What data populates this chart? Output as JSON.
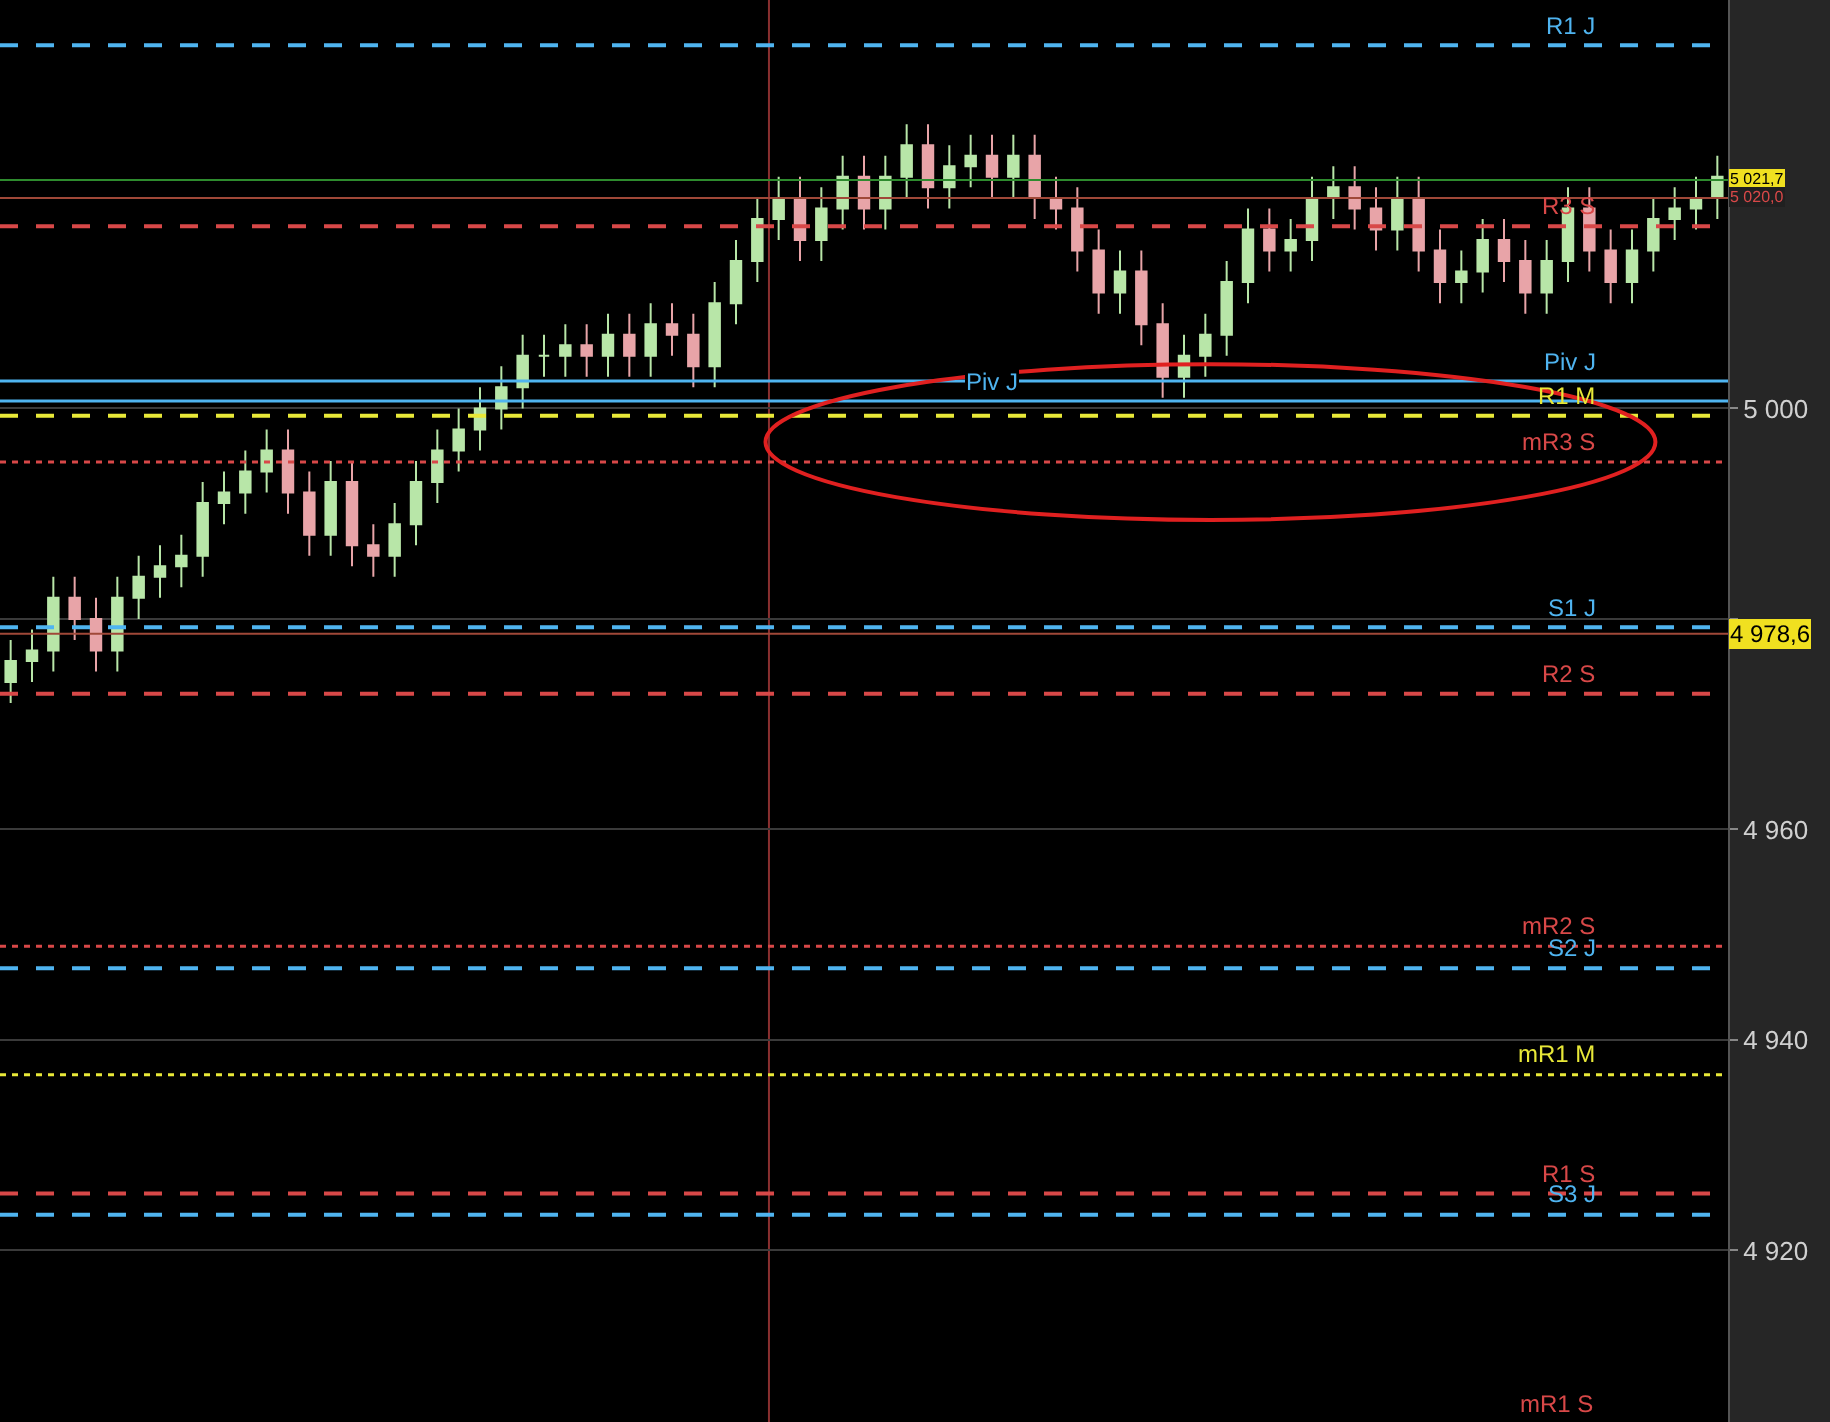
{
  "chart_data": {
    "type": "candlestick",
    "categories": [
      null,
      null,
      null,
      null,
      null,
      null,
      null,
      null,
      null,
      null,
      null,
      null,
      null,
      null,
      null,
      null,
      null,
      null,
      null,
      null,
      null,
      null,
      null,
      null,
      null,
      null,
      null,
      null,
      null,
      null,
      null,
      null,
      null,
      null,
      null,
      null,
      null,
      null,
      null,
      null,
      null,
      null,
      null,
      null,
      null,
      null,
      null,
      null,
      null,
      null,
      null,
      null,
      null,
      null,
      null,
      null,
      null,
      null,
      null,
      null,
      null,
      null,
      null,
      null,
      null,
      null,
      null,
      null,
      null,
      null,
      null,
      null,
      null,
      null,
      null,
      null,
      null,
      null,
      null,
      null,
      null
    ],
    "ohlc": [
      [
        4974,
        4978,
        4972,
        4976
      ],
      [
        4976,
        4979,
        4974,
        4977
      ],
      [
        4977,
        4984,
        4975,
        4982
      ],
      [
        4982,
        4984,
        4978,
        4980
      ],
      [
        4980,
        4982,
        4975,
        4977
      ],
      [
        4977,
        4984,
        4975,
        4982
      ],
      [
        4982,
        4986,
        4980,
        4984
      ],
      [
        4984,
        4987,
        4982,
        4985
      ],
      [
        4985,
        4988,
        4983,
        4986
      ],
      [
        4986,
        4993,
        4984,
        4991
      ],
      [
        4991,
        4994,
        4989,
        4992
      ],
      [
        4992,
        4996,
        4990,
        4994
      ],
      [
        4994,
        4998,
        4992,
        4996
      ],
      [
        4996,
        4998,
        4990,
        4992
      ],
      [
        4992,
        4994,
        4986,
        4988
      ],
      [
        4988,
        4995,
        4986,
        4993
      ],
      [
        4993,
        4995,
        4985,
        4987
      ],
      [
        4987,
        4989,
        4984,
        4986
      ],
      [
        4986,
        4991,
        4984,
        4989
      ],
      [
        4989,
        4995,
        4987,
        4993
      ],
      [
        4993,
        4998,
        4991,
        4996
      ],
      [
        4996,
        5000,
        4994,
        4998
      ],
      [
        4998,
        5002,
        4996,
        5000
      ],
      [
        5000,
        5004,
        4998,
        5002
      ],
      [
        5002,
        5007,
        5000,
        5005
      ],
      [
        5005,
        5007,
        5003,
        5005
      ],
      [
        5005,
        5008,
        5003,
        5006
      ],
      [
        5006,
        5008,
        5003,
        5005
      ],
      [
        5005,
        5009,
        5003,
        5007
      ],
      [
        5007,
        5009,
        5003,
        5005
      ],
      [
        5005,
        5010,
        5003,
        5008
      ],
      [
        5008,
        5010,
        5005,
        5007
      ],
      [
        5007,
        5009,
        5002,
        5004
      ],
      [
        5004,
        5012,
        5002,
        5010
      ],
      [
        5010,
        5016,
        5008,
        5014
      ],
      [
        5014,
        5020,
        5012,
        5018
      ],
      [
        5018,
        5022,
        5016,
        5020
      ],
      [
        5020,
        5022,
        5014,
        5016
      ],
      [
        5016,
        5021,
        5014,
        5019
      ],
      [
        5019,
        5024,
        5017,
        5022
      ],
      [
        5022,
        5024,
        5017,
        5019
      ],
      [
        5019,
        5024,
        5017,
        5022
      ],
      [
        5022,
        5027,
        5020,
        5025
      ],
      [
        5025,
        5027,
        5019,
        5021
      ],
      [
        5021,
        5025,
        5019,
        5023
      ],
      [
        5023,
        5026,
        5021,
        5024
      ],
      [
        5024,
        5026,
        5020,
        5022
      ],
      [
        5022,
        5026,
        5020,
        5024
      ],
      [
        5024,
        5026,
        5018,
        5020
      ],
      [
        5020,
        5022,
        5017,
        5019
      ],
      [
        5019,
        5021,
        5013,
        5015
      ],
      [
        5015,
        5017,
        5009,
        5011
      ],
      [
        5011,
        5015,
        5009,
        5013
      ],
      [
        5013,
        5015,
        5006,
        5008
      ],
      [
        5008,
        5010,
        5001,
        5003
      ],
      [
        5003,
        5007,
        5001,
        5005
      ],
      [
        5005,
        5009,
        5003,
        5007
      ],
      [
        5007,
        5014,
        5005,
        5012
      ],
      [
        5012,
        5019,
        5010,
        5017
      ],
      [
        5017,
        5019,
        5013,
        5015
      ],
      [
        5015,
        5018,
        5013,
        5016
      ],
      [
        5016,
        5022,
        5014,
        5020
      ],
      [
        5020,
        5023,
        5018,
        5021
      ],
      [
        5021,
        5023,
        5017,
        5019
      ],
      [
        5019,
        5021,
        5015,
        5017
      ],
      [
        5017,
        5022,
        5015,
        5020
      ],
      [
        5020,
        5022,
        5013,
        5015
      ],
      [
        5015,
        5017,
        5010,
        5012
      ],
      [
        5012,
        5015,
        5010,
        5013
      ],
      [
        5013,
        5018,
        5011,
        5016
      ],
      [
        5016,
        5018,
        5012,
        5014
      ],
      [
        5014,
        5016,
        5009,
        5011
      ],
      [
        5011,
        5016,
        5009,
        5014
      ],
      [
        5014,
        5021,
        5012,
        5019
      ],
      [
        5019,
        5021,
        5013,
        5015
      ],
      [
        5015,
        5017,
        5010,
        5012
      ],
      [
        5012,
        5017,
        5010,
        5015
      ],
      [
        5015,
        5020,
        5013,
        5018
      ],
      [
        5018,
        5021,
        5016,
        5019
      ],
      [
        5019,
        5022,
        5017,
        5020
      ],
      [
        5020,
        5024,
        5018,
        5022
      ]
    ],
    "colors": [
      "#b8e6a8",
      "#b8e6a8",
      "#b8e6a8",
      "#e8a4a8",
      "#e8a4a8",
      "#b8e6a8",
      "#b8e6a8",
      "#b8e6a8",
      "#b8e6a8",
      "#b8e6a8",
      "#b8e6a8",
      "#b8e6a8",
      "#b8e6a8",
      "#e8a4a8",
      "#e8a4a8",
      "#b8e6a8",
      "#e8a4a8",
      "#e8a4a8",
      "#b8e6a8",
      "#b8e6a8",
      "#b8e6a8",
      "#b8e6a8",
      "#b8e6a8",
      "#b8e6a8",
      "#b8e6a8",
      "#b8e6a8",
      "#b8e6a8",
      "#e8a4a8",
      "#b8e6a8",
      "#e8a4a8",
      "#b8e6a8",
      "#e8a4a8",
      "#e8a4a8",
      "#b8e6a8",
      "#b8e6a8",
      "#b8e6a8",
      "#b8e6a8",
      "#e8a4a8",
      "#b8e6a8",
      "#b8e6a8",
      "#e8a4a8",
      "#b8e6a8",
      "#b8e6a8",
      "#e8a4a8",
      "#b8e6a8",
      "#b8e6a8",
      "#e8a4a8",
      "#b8e6a8",
      "#e8a4a8",
      "#e8a4a8",
      "#e8a4a8",
      "#e8a4a8",
      "#b8e6a8",
      "#e8a4a8",
      "#e8a4a8",
      "#b8e6a8",
      "#b8e6a8",
      "#b8e6a8",
      "#b8e6a8",
      "#e8a4a8",
      "#b8e6a8",
      "#b8e6a8",
      "#b8e6a8",
      "#e8a4a8",
      "#e8a4a8",
      "#b8e6a8",
      "#e8a4a8",
      "#e8a4a8",
      "#b8e6a8",
      "#b8e6a8",
      "#e8a4a8",
      "#e8a4a8",
      "#b8e6a8",
      "#b8e6a8",
      "#e8a4a8",
      "#e8a4a8",
      "#b8e6a8",
      "#b8e6a8",
      "#b8e6a8",
      "#b8e6a8",
      "#b8e6a8"
    ],
    "ylim": [
      4903.7,
      5038.8
    ],
    "yticks": [
      {
        "value": 4920,
        "label": "4 920"
      },
      {
        "value": 4940,
        "label": "4 940"
      },
      {
        "value": 4960,
        "label": "4 960"
      },
      {
        "value": 4980,
        "label": null
      },
      {
        "value": 5000,
        "label": "5 000"
      },
      {
        "value": 5020,
        "label": null
      }
    ],
    "grid": "y",
    "legend": false,
    "ref_lines": [
      {
        "axis": "y",
        "value": 5034.5,
        "label": "R1 J",
        "color": "#4fb4f0",
        "line_style": "dashed"
      },
      {
        "axis": "y",
        "value": 5017.3,
        "label": "R3 S",
        "color": "#d84848",
        "line_style": "dashed"
      },
      {
        "axis": "y",
        "value": 5002.6,
        "label": "Piv J",
        "color": "#4fb4f0",
        "line_style": "solid"
      },
      {
        "axis": "y",
        "value": 5000.7,
        "label": "Piv J",
        "color": "#4fb4f0",
        "line_style": "solid"
      },
      {
        "axis": "y",
        "value": 4999.3,
        "label": "R1 M",
        "color": "#e8e838",
        "line_style": "dashed"
      },
      {
        "axis": "y",
        "value": 4994.9,
        "label": "mR3 S",
        "color": "#d84848",
        "line_style": "dotted"
      },
      {
        "axis": "y",
        "value": 4979.2,
        "label": "S1 J",
        "color": "#4fb4f0",
        "line_style": "dashed"
      },
      {
        "axis": "y",
        "value": 4978.6,
        "label": null,
        "color": "#a04838",
        "line_style": "solid"
      },
      {
        "axis": "y",
        "value": 5021.7,
        "label": null,
        "color": "#2e8b2e",
        "line_style": "solid"
      },
      {
        "axis": "y",
        "value": 5020.0,
        "label": null,
        "color": "#a04838",
        "line_style": "solid"
      },
      {
        "axis": "y",
        "value": 4972.9,
        "label": "R2 S",
        "color": "#d84848",
        "line_style": "dashed"
      },
      {
        "axis": "y",
        "value": 4948.9,
        "label": "mR2 S",
        "color": "#d84848",
        "line_style": "dotted"
      },
      {
        "axis": "y",
        "value": 4946.8,
        "label": "S2 J",
        "color": "#4fb4f0",
        "line_style": "dashed"
      },
      {
        "axis": "y",
        "value": 4936.7,
        "label": "mR1 M",
        "color": "#e8e838",
        "line_style": "dotted"
      },
      {
        "axis": "y",
        "value": 4925.4,
        "label": "R1 S",
        "color": "#d84848",
        "line_style": "dashed"
      },
      {
        "axis": "y",
        "value": 4923.4,
        "label": "S3 J",
        "color": "#4fb4f0",
        "line_style": "dashed"
      }
    ],
    "annotations": [
      {
        "text": "5 021,7",
        "y": 5021.7
      },
      {
        "text": "5 020,0",
        "y": 5020.0
      },
      {
        "text": "4 978,6",
        "y": 4978.6
      },
      "mR1 S"
    ]
  }
}
